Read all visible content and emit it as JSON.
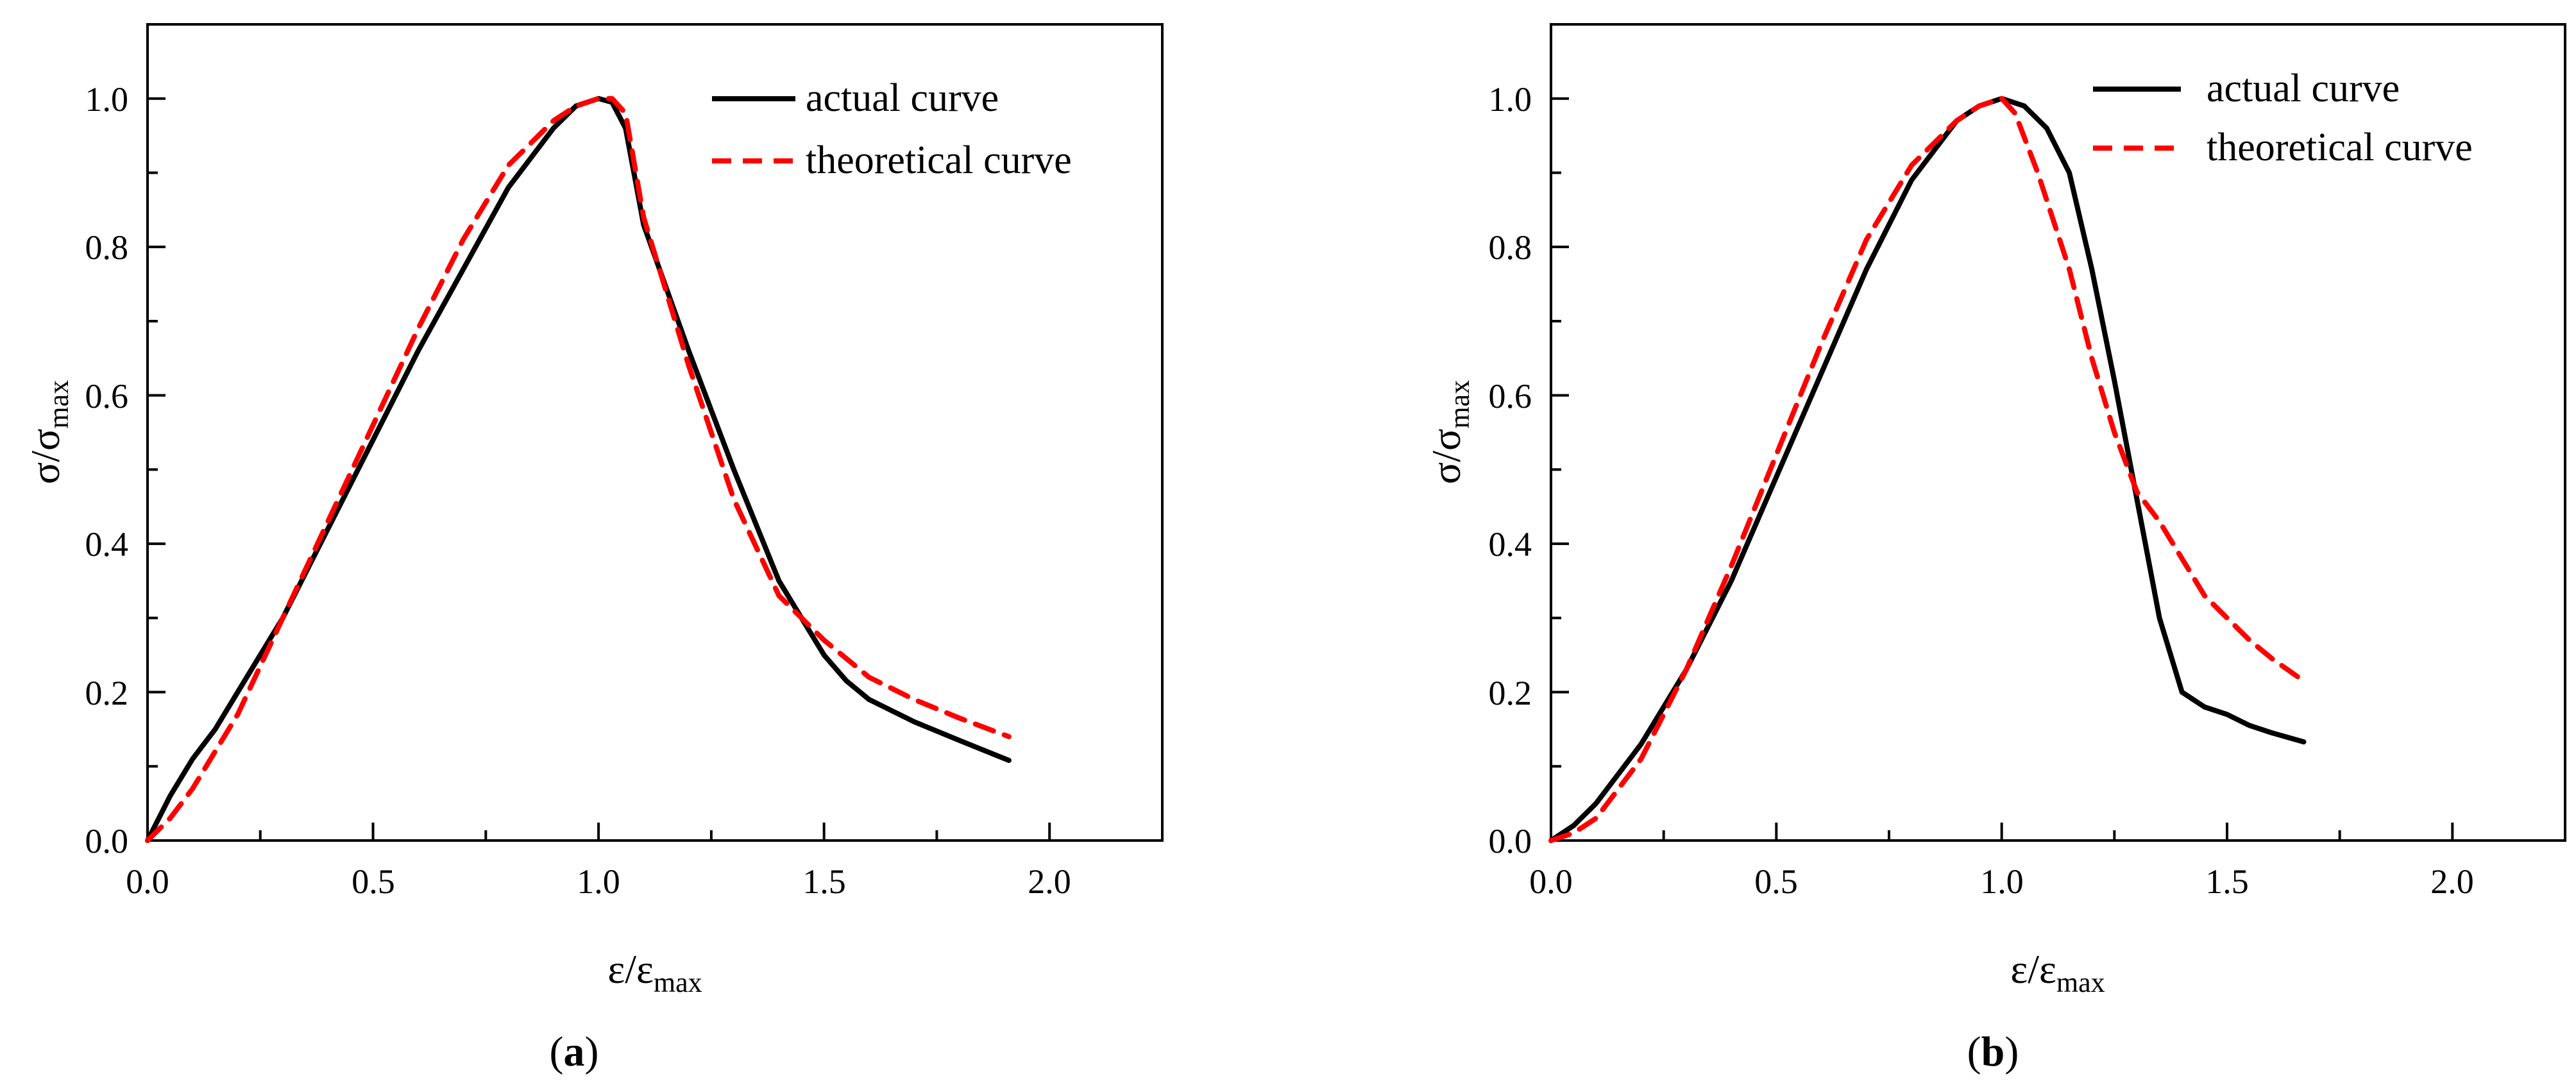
{
  "figure": {
    "panels": [
      {
        "caption_open": "(",
        "caption_letter": "a",
        "caption_close": ")"
      },
      {
        "caption_open": "(",
        "caption_letter": "b",
        "caption_close": ")"
      }
    ]
  },
  "chart_data": [
    {
      "type": "line",
      "xlabel_main": "ε/ε",
      "xlabel_sub": "max",
      "ylabel_main": "σ/σ",
      "ylabel_sub": "max",
      "xlim": [
        0,
        2.25
      ],
      "ylim": [
        0,
        1.1
      ],
      "xticks": [
        0,
        0.5,
        1.0,
        1.5,
        2.0
      ],
      "xtick_labels": [
        "0.0",
        "0.5",
        "1.0",
        "1.5",
        "2.0"
      ],
      "yticks": [
        0,
        0.2,
        0.4,
        0.6,
        0.8,
        1.0
      ],
      "ytick_labels": [
        "0.0",
        "0.2",
        "0.4",
        "0.6",
        "0.8",
        "1.0"
      ],
      "legend_position": "top-right",
      "series": [
        {
          "name": "actual curve",
          "color": "#000000",
          "style": "solid",
          "x": [
            0,
            0.05,
            0.1,
            0.15,
            0.2,
            0.3,
            0.4,
            0.5,
            0.6,
            0.7,
            0.8,
            0.9,
            0.95,
            1.0,
            1.03,
            1.06,
            1.1,
            1.2,
            1.3,
            1.4,
            1.5,
            1.55,
            1.6,
            1.7,
            1.8,
            1.91
          ],
          "y": [
            0,
            0.06,
            0.11,
            0.15,
            0.2,
            0.3,
            0.42,
            0.54,
            0.66,
            0.77,
            0.88,
            0.96,
            0.99,
            1.0,
            0.995,
            0.96,
            0.83,
            0.66,
            0.5,
            0.35,
            0.25,
            0.215,
            0.19,
            0.16,
            0.135,
            0.108
          ]
        },
        {
          "name": "theoretical curve",
          "color": "#ff0000",
          "style": "dashed",
          "x": [
            0,
            0.05,
            0.1,
            0.2,
            0.3,
            0.4,
            0.5,
            0.6,
            0.7,
            0.8,
            0.9,
            0.95,
            1.0,
            1.03,
            1.06,
            1.1,
            1.2,
            1.3,
            1.4,
            1.5,
            1.6,
            1.7,
            1.8,
            1.91
          ],
          "y": [
            0,
            0.03,
            0.07,
            0.17,
            0.3,
            0.43,
            0.56,
            0.69,
            0.81,
            0.91,
            0.97,
            0.99,
            1.0,
            1.0,
            0.98,
            0.84,
            0.64,
            0.46,
            0.33,
            0.27,
            0.22,
            0.19,
            0.165,
            0.14
          ]
        }
      ]
    },
    {
      "type": "line",
      "xlabel_main": "ε/ε",
      "xlabel_sub": "max",
      "ylabel_main": "σ/σ",
      "ylabel_sub": "max",
      "xlim": [
        0,
        2.25
      ],
      "ylim": [
        0,
        1.1
      ],
      "xticks": [
        0,
        0.5,
        1.0,
        1.5,
        2.0
      ],
      "xtick_labels": [
        "0.0",
        "0.5",
        "1.0",
        "1.5",
        "2.0"
      ],
      "yticks": [
        0,
        0.2,
        0.4,
        0.6,
        0.8,
        1.0
      ],
      "ytick_labels": [
        "0.0",
        "0.2",
        "0.4",
        "0.6",
        "0.8",
        "1.0"
      ],
      "legend_position": "top-right",
      "series": [
        {
          "name": "actual curve",
          "color": "#000000",
          "style": "solid",
          "x": [
            0,
            0.05,
            0.1,
            0.2,
            0.3,
            0.4,
            0.5,
            0.6,
            0.7,
            0.8,
            0.9,
            0.95,
            1.0,
            1.05,
            1.1,
            1.15,
            1.2,
            1.25,
            1.3,
            1.35,
            1.4,
            1.45,
            1.5,
            1.55,
            1.6,
            1.67
          ],
          "y": [
            0,
            0.02,
            0.05,
            0.13,
            0.23,
            0.35,
            0.49,
            0.63,
            0.77,
            0.89,
            0.97,
            0.99,
            1.0,
            0.99,
            0.96,
            0.9,
            0.77,
            0.62,
            0.46,
            0.3,
            0.2,
            0.18,
            0.17,
            0.155,
            0.145,
            0.133
          ]
        },
        {
          "name": "theoretical curve",
          "color": "#ff0000",
          "style": "dashed",
          "x": [
            0,
            0.05,
            0.1,
            0.2,
            0.3,
            0.4,
            0.5,
            0.6,
            0.7,
            0.8,
            0.9,
            0.95,
            1.0,
            1.03,
            1.08,
            1.15,
            1.2,
            1.25,
            1.3,
            1.35,
            1.4,
            1.45,
            1.5,
            1.55,
            1.6,
            1.67
          ],
          "y": [
            0,
            0.01,
            0.03,
            0.11,
            0.23,
            0.37,
            0.52,
            0.67,
            0.81,
            0.91,
            0.97,
            0.99,
            1.0,
            0.98,
            0.9,
            0.77,
            0.65,
            0.55,
            0.47,
            0.43,
            0.38,
            0.33,
            0.3,
            0.27,
            0.245,
            0.215
          ]
        }
      ]
    }
  ]
}
